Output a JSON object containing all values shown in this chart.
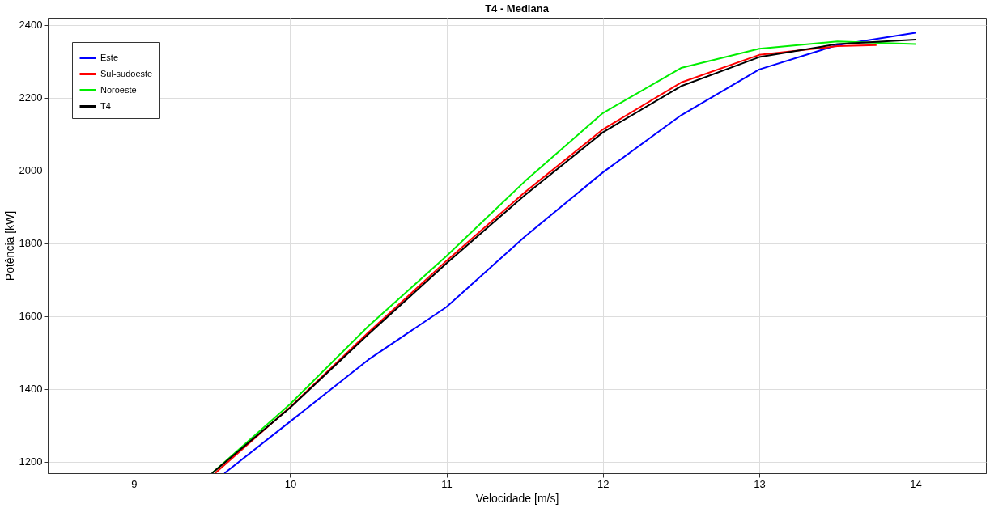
{
  "chart_data": {
    "type": "line",
    "title": "T4 - Mediana",
    "xlabel": "Velocidade [m/s]",
    "ylabel": "Potência [kW]",
    "xlim": [
      8.45,
      14.45
    ],
    "xticks": [
      9,
      10,
      11,
      12,
      13,
      14
    ],
    "ylim": [
      1168,
      2420
    ],
    "yticks": [
      1200,
      1400,
      1600,
      1800,
      2000,
      2200,
      2400
    ],
    "grid": true,
    "legend": "top left",
    "line_style": "solid",
    "marker": "none",
    "series": [
      {
        "name": "Este",
        "color": "#0000ff",
        "x": [
          9.58,
          10,
          10.5,
          11,
          11.5,
          12,
          12.5,
          13,
          13.5,
          14
        ],
        "values": [
          1168,
          1310,
          1480,
          1625,
          1818,
          1995,
          2152,
          2278,
          2345,
          2379
        ]
      },
      {
        "name": "Sul-sudoeste",
        "color": "#ff0000",
        "x": [
          9.52,
          10,
          10.5,
          11,
          11.5,
          12,
          12.5,
          13,
          13.5,
          13.75
        ],
        "values": [
          1168,
          1350,
          1555,
          1752,
          1940,
          2113,
          2242,
          2318,
          2342,
          2345
        ]
      },
      {
        "name": "Noroeste",
        "color": "#00ee00",
        "x": [
          9.5,
          10,
          10.5,
          11,
          11.5,
          12,
          12.5,
          13,
          13.5,
          14
        ],
        "values": [
          1168,
          1358,
          1572,
          1765,
          1970,
          2158,
          2282,
          2335,
          2355,
          2348
        ]
      },
      {
        "name": "T4",
        "color": "#000000",
        "x": [
          9.5,
          10,
          10.5,
          11,
          11.5,
          12,
          12.5,
          13,
          13.5,
          14
        ],
        "values": [
          1168,
          1348,
          1550,
          1745,
          1932,
          2105,
          2232,
          2312,
          2348,
          2360
        ]
      }
    ]
  }
}
